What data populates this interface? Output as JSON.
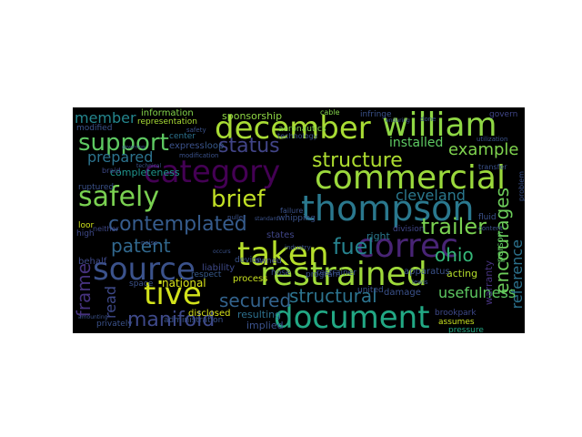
{
  "word_cloud": {
    "background": "#000000",
    "words": [
      {
        "text": "category",
        "color": "#440154"
      },
      {
        "text": "william",
        "color": "#8fd744"
      },
      {
        "text": "december",
        "color": "#a8db34"
      },
      {
        "text": "commercial",
        "color": "#9bd93c"
      },
      {
        "text": "thompson",
        "color": "#2a788e"
      },
      {
        "text": "restrained",
        "color": "#9fda3a"
      },
      {
        "text": "document",
        "color": "#22a884"
      },
      {
        "text": "safely",
        "color": "#7ad151"
      },
      {
        "text": "source",
        "color": "#3b528b"
      },
      {
        "text": "taken",
        "color": "#b5de2b"
      },
      {
        "text": "correc",
        "color": "#482475"
      },
      {
        "text": "tive",
        "color": "#d2e21b"
      },
      {
        "text": "support",
        "color": "#5ec962"
      },
      {
        "text": "structure",
        "color": "#addc30"
      },
      {
        "text": "status",
        "color": "#414487"
      },
      {
        "text": "brief",
        "color": "#c0df25"
      },
      {
        "text": "contemplated",
        "color": "#365c8d"
      },
      {
        "text": "manifold",
        "color": "#3e4989"
      },
      {
        "text": "secured",
        "color": "#33638d"
      },
      {
        "text": "structural",
        "color": "#2c738e"
      },
      {
        "text": "patent",
        "color": "#31688e"
      },
      {
        "text": "fuel",
        "color": "#26828e"
      },
      {
        "text": "trailer",
        "color": "#7ad151"
      },
      {
        "text": "encourages",
        "color": "#6ccd5a"
      },
      {
        "text": "reference",
        "color": "#2c728e"
      },
      {
        "text": "frame",
        "color": "#46327e"
      },
      {
        "text": "cleveland",
        "color": "#2a788e"
      },
      {
        "text": "member",
        "color": "#24868e"
      },
      {
        "text": "prepared",
        "color": "#2c738e"
      },
      {
        "text": "installed",
        "color": "#5ec962"
      },
      {
        "text": "example",
        "color": "#7fd34e"
      },
      {
        "text": "ohio",
        "color": "#35b779"
      },
      {
        "text": "usefulness",
        "color": "#5ec962"
      },
      {
        "text": "read",
        "color": "#3e4989"
      },
      {
        "text": "national",
        "color": "#d8e219"
      },
      {
        "text": "information",
        "color": "#84d44b"
      },
      {
        "text": "sponsorship",
        "color": "#8fd744"
      },
      {
        "text": "representation",
        "color": "#a8db34"
      },
      {
        "text": "completeness",
        "color": "#1f948c"
      },
      {
        "text": "express",
        "color": "#3b528b"
      },
      {
        "text": "loop",
        "color": "#375a8c"
      },
      {
        "text": "resulting",
        "color": "#2d708e"
      },
      {
        "text": "implied",
        "color": "#3b528b"
      },
      {
        "text": "disclosed",
        "color": "#d8e219"
      },
      {
        "text": "liability",
        "color": "#3e4989"
      },
      {
        "text": "acting",
        "color": "#b5de2b"
      },
      {
        "text": "process",
        "color": "#c8e020"
      },
      {
        "text": "administration",
        "color": "#3b528b"
      },
      {
        "text": "privately",
        "color": "#3b528b"
      },
      {
        "text": "brookpark",
        "color": "#3e4989"
      },
      {
        "text": "assumes",
        "color": "#c8e020"
      },
      {
        "text": "pressure",
        "color": "#22a884"
      },
      {
        "text": "warranty",
        "color": "#46327e"
      },
      {
        "text": "person",
        "color": "#5ec962"
      },
      {
        "text": "modified",
        "color": "#3b528b"
      },
      {
        "text": "center",
        "color": "#2c728e"
      },
      {
        "text": "ruptured",
        "color": "#3b528b"
      },
      {
        "text": "behalf",
        "color": "#3e4989"
      },
      {
        "text": "owned",
        "color": "#404688"
      },
      {
        "text": "respect",
        "color": "#375a8c"
      },
      {
        "text": "program",
        "color": "#3b528b"
      },
      {
        "text": "apparatus",
        "color": "#3b528b"
      },
      {
        "text": "damage",
        "color": "#3b528b"
      },
      {
        "text": "division",
        "color": "#404688"
      },
      {
        "text": "right",
        "color": "#2a788e"
      },
      {
        "text": "united",
        "color": "#3b528b"
      },
      {
        "text": "states",
        "color": "#404688"
      },
      {
        "text": "govern",
        "color": "#404688"
      },
      {
        "text": "infringe",
        "color": "#3b528b"
      },
      {
        "text": "cable",
        "color": "#84d44b"
      },
      {
        "text": "aeronautics",
        "color": "#84d44b"
      },
      {
        "text": "technology",
        "color": "#3b528b"
      },
      {
        "text": "whipping",
        "color": "#3b528b"
      },
      {
        "text": "device",
        "color": "#3b528b"
      },
      {
        "text": "space",
        "color": "#3b528b"
      },
      {
        "text": "neither",
        "color": "#3e4989"
      },
      {
        "text": "braid",
        "color": "#3e4989"
      },
      {
        "text": "high",
        "color": "#3e4989"
      },
      {
        "text": "loor",
        "color": "#cde11d"
      },
      {
        "text": "hose",
        "color": "#3b528b"
      },
      {
        "text": "restrainer",
        "color": "#3b528b"
      },
      {
        "text": "lewis",
        "color": "#3b528b"
      },
      {
        "text": "fluid",
        "color": "#3b528b"
      },
      {
        "text": "content",
        "color": "#3b528b"
      },
      {
        "text": "transfer",
        "color": "#3b528b"
      },
      {
        "text": "utilization",
        "color": "#3b528b"
      },
      {
        "text": "problem",
        "color": "#3b528b"
      },
      {
        "text": "puller",
        "color": "#3b528b"
      },
      {
        "text": "failure",
        "color": "#3b528b"
      },
      {
        "text": "standard",
        "color": "#3b528b"
      },
      {
        "text": "industry",
        "color": "#3b528b"
      },
      {
        "text": "occurs",
        "color": "#3b528b"
      },
      {
        "text": "noise",
        "color": "#3b528b"
      },
      {
        "text": "amounting",
        "color": "#3b528b"
      },
      {
        "text": "safety",
        "color": "#3b528b"
      },
      {
        "text": "modification",
        "color": "#3b528b"
      },
      {
        "text": "technical",
        "color": "#3b528b"
      },
      {
        "text": "done",
        "color": "#3b528b"
      },
      {
        "text": "enduring",
        "color": "#3b528b"
      },
      {
        "text": "governing",
        "color": "#3b528b"
      }
    ]
  }
}
